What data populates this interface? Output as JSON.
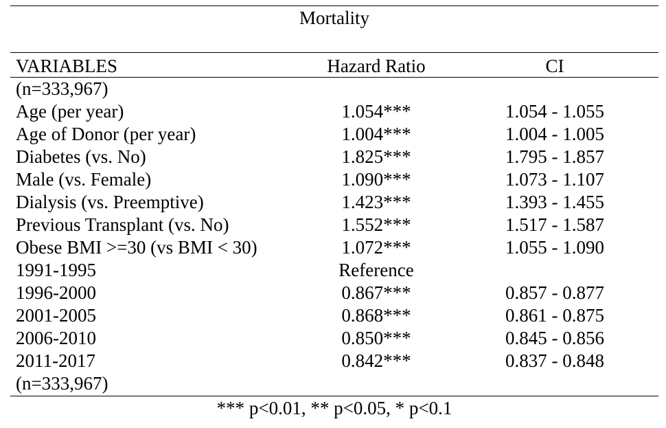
{
  "title": "Mortality",
  "columns": {
    "variables": "VARIABLES",
    "hazard_ratio": "Hazard Ratio",
    "ci": "CI"
  },
  "rows": [
    {
      "variable": "(n=333,967)",
      "hr": "",
      "ci": ""
    },
    {
      "variable": "Age (per year)",
      "hr": "1.054***",
      "ci": "1.054 - 1.055"
    },
    {
      "variable": "Age of Donor (per year)",
      "hr": "1.004***",
      "ci": "1.004 - 1.005"
    },
    {
      "variable": "Diabetes (vs. No)",
      "hr": "1.825***",
      "ci": "1.795 - 1.857"
    },
    {
      "variable": "Male (vs. Female)",
      "hr": "1.090***",
      "ci": "1.073 - 1.107"
    },
    {
      "variable": "Dialysis (vs. Preemptive)",
      "hr": "1.423***",
      "ci": "1.393 - 1.455"
    },
    {
      "variable": "Previous Transplant (vs. No)",
      "hr": "1.552***",
      "ci": "1.517 - 1.587"
    },
    {
      "variable": "Obese BMI >=30 (vs BMI < 30)",
      "hr": "1.072***",
      "ci": "1.055 - 1.090"
    },
    {
      "variable": "1991-1995",
      "hr": "Reference",
      "ci": ""
    },
    {
      "variable": "1996-2000",
      "hr": "0.867***",
      "ci": "0.857 - 0.877"
    },
    {
      "variable": "2001-2005",
      "hr": "0.868***",
      "ci": "0.861 - 0.875"
    },
    {
      "variable": "2006-2010",
      "hr": "0.850***",
      "ci": "0.845 - 0.856"
    },
    {
      "variable": "2011-2017",
      "hr": "0.842***",
      "ci": "0.837 - 0.848"
    },
    {
      "variable": "(n=333,967)",
      "hr": "",
      "ci": ""
    }
  ],
  "footnote": "*** p<0.01, ** p<0.05, * p<0.1"
}
